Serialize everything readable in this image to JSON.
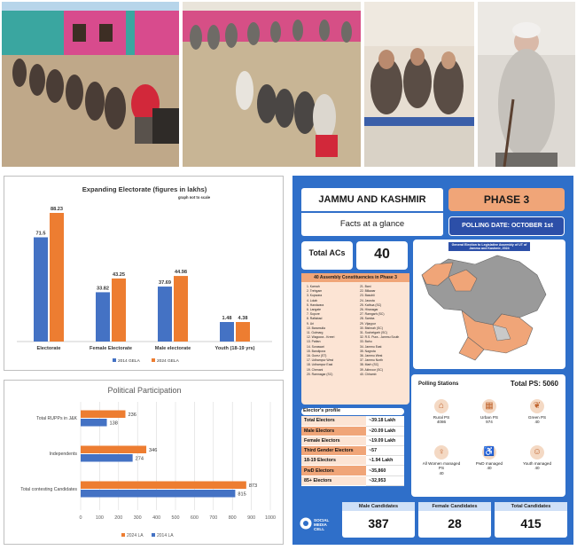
{
  "photos": [
    {
      "name": "queue-at-polling-station-1"
    },
    {
      "name": "queue-at-polling-station-2"
    },
    {
      "name": "seated-voters"
    },
    {
      "name": "elderly-voter"
    }
  ],
  "electorate_chart": {
    "chart_data": {
      "type": "bar",
      "title": "Expanding Electorate (figures in lakhs)",
      "subtitle": "graph not to scale",
      "categories": [
        "Electorate",
        "Female Electorate",
        "Male electorate",
        "Youth (18-19 yrs)"
      ],
      "series": [
        {
          "name": "2014 GELA",
          "values": [
            71.5,
            33.82,
            37.69,
            1.48
          ],
          "value_labels": [
            "71.5",
            "33.82",
            "37.69",
            "1.48"
          ],
          "color": "#4472c4"
        },
        {
          "name": "2024 GELA",
          "values": [
            88.23,
            43.25,
            44.98,
            4.38
          ],
          "value_labels": [
            "88.23",
            "43.25",
            "44.98",
            "4.38"
          ],
          "color": "#ed7d31"
        }
      ],
      "legend": "bottom",
      "grid": false
    }
  },
  "participation_chart": {
    "chart_data": {
      "type": "bar",
      "orientation": "horizontal",
      "title": "Political Participation",
      "categories": [
        "Total RUPPs in J&K",
        "Independents",
        "Total contesting Candidates"
      ],
      "series": [
        {
          "name": "2024 LA",
          "values": [
            236,
            346,
            873
          ],
          "value_labels": [
            "236",
            "346",
            "873"
          ],
          "color": "#ed7d31"
        },
        {
          "name": "2014 LA",
          "values": [
            138,
            274,
            815
          ],
          "value_labels": [
            "138",
            "274",
            "815"
          ],
          "color": "#4472c4"
        }
      ],
      "xlim": [
        0,
        1000
      ],
      "xticks": [
        "0",
        "100",
        "200",
        "300",
        "400",
        "500",
        "600",
        "700",
        "800",
        "900",
        "1000"
      ],
      "legend": "bottom",
      "grid": true
    }
  },
  "infographic": {
    "title": "JAMMU AND KASHMIR",
    "subtitle": "Facts at a glance",
    "phase": "PHASE 3",
    "polling_date": "POLLING DATE: OCTOBER 1st",
    "total_acs_label": "Total ACs",
    "total_acs": "40",
    "map_caption": "General Election to Legislative Assembly of UT of Jammu and Kashmir, 2024",
    "constituencies_header": "40 Assembly Constituencies in Phase 3",
    "constituencies_col1": [
      "1. Karnah",
      "2. Trehgam",
      "3. Kupwara",
      "4. Lolab",
      "5. Handwara",
      "6. Langate",
      "7. Sopore",
      "8. Rafiabad",
      "9. Uri",
      "10. Baramulla",
      "11. Gulmarg",
      "12. Wagoora - Kreeri",
      "13. Pattan",
      "14. Sonawari",
      "15. Bandipora",
      "16. Gurez (ST)",
      "17. Udhampur West",
      "18. Udhampur East",
      "19. Chenani",
      "20. Ramnagar (SC)"
    ],
    "constituencies_col2": [
      "21. Bani",
      "22. Billawar",
      "23. Basohli",
      "24. Jasrota",
      "25. Kathua (SC)",
      "26. Hiranagar",
      "27. Ramgarh (SC)",
      "28. Samba",
      "29. Vijaypur",
      "30. Bishnah (SC)",
      "31. Suchetgarh (SC)",
      "32. R.S. Pura - Jammu South",
      "33. Bahu",
      "34. Jammu East",
      "35. Nagrota",
      "36. Jammu West",
      "37. Jammu North",
      "38. Marh (SC)",
      "39. Akhnoor (SC)",
      "40. Chhamb"
    ],
    "electors_header": "Elector's profile",
    "electors": [
      {
        "label": "Total Electors",
        "value": "~39.18 Lakh"
      },
      {
        "label": "Male Electors",
        "value": "~20.09 Lakh"
      },
      {
        "label": "Female Electors",
        "value": "~19.09 Lakh"
      },
      {
        "label": "Third Gender Electors",
        "value": "~57"
      },
      {
        "label": "18-19 Electors",
        "value": "~1.94 Lakh"
      },
      {
        "label": "PwD Electors",
        "value": "~35,860"
      },
      {
        "label": "85+ Electors",
        "value": "~32,953"
      }
    ],
    "polling_header": "Polling Stations",
    "total_ps": "Total PS: 5060",
    "ps_items": [
      {
        "label": "Rural PS",
        "value": "4086",
        "icon": "house-icon"
      },
      {
        "label": "Urban PS",
        "value": "974",
        "icon": "building-icon"
      },
      {
        "label": "Green PS",
        "value": "40",
        "icon": "leaf-icon"
      },
      {
        "label": "All Women managed PS",
        "value": "40",
        "icon": "woman-icon"
      },
      {
        "label": "PwD managed",
        "value": "40",
        "icon": "wheelchair-icon"
      },
      {
        "label": "Youth managed",
        "value": "40",
        "icon": "youth-icon"
      }
    ],
    "candidates": [
      {
        "label": "Male Candidates",
        "value": "387"
      },
      {
        "label": "Female Candidates",
        "value": "28"
      },
      {
        "label": "Total Candidates",
        "value": "415"
      }
    ],
    "logo_text": "SOCIAL MEDIA CELL"
  }
}
